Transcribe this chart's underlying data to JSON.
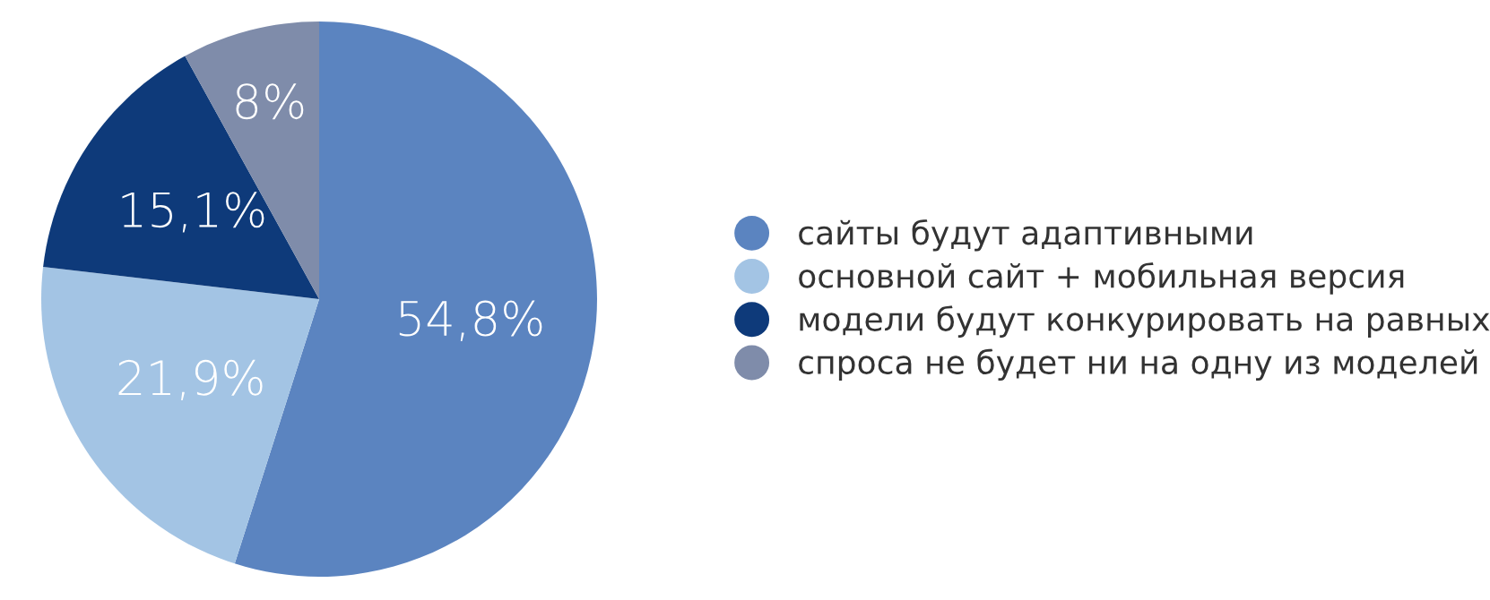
{
  "chart_data": {
    "type": "pie",
    "categories": [
      "сайты будут адаптивными",
      "основной сайт + мобильная версия",
      "модели будут конкурировать на равных",
      "спроса не будет ни на одну из моделей"
    ],
    "values": [
      54.8,
      21.9,
      15.1,
      8
    ],
    "value_labels": [
      "54,8%",
      "21,9%",
      "15,1%",
      "8%"
    ],
    "colors": [
      "#5b84c0",
      "#a3c4e4",
      "#0e3a7a",
      "#7f8caa"
    ],
    "legend": "right"
  }
}
